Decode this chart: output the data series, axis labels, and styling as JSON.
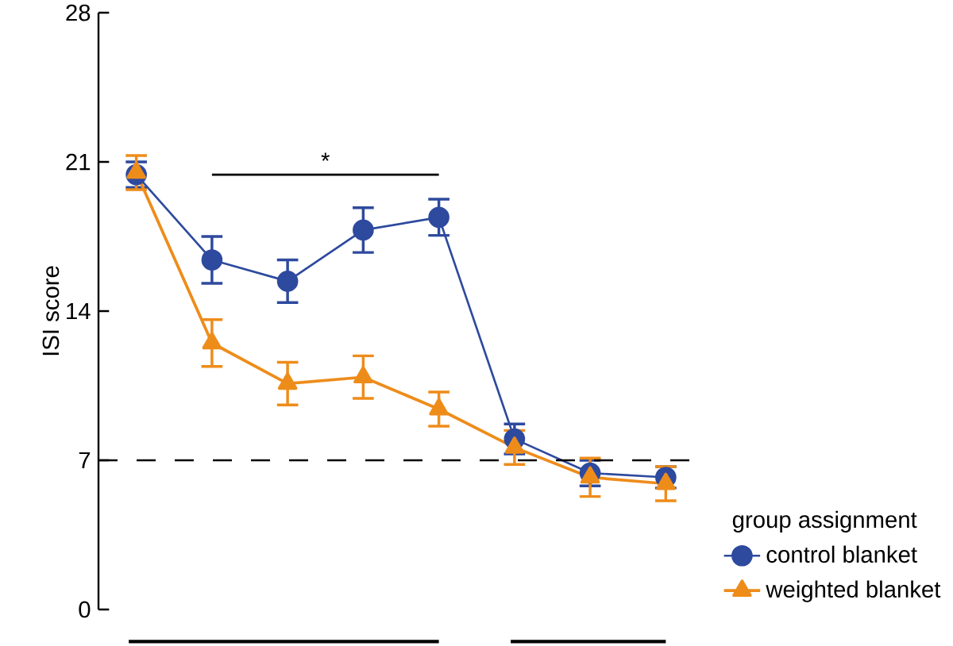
{
  "chart_data": {
    "type": "line",
    "ylabel": "ISI score",
    "legend_title": "group assignment",
    "categories": [
      null,
      null,
      null,
      null,
      null,
      null,
      null,
      null
    ],
    "series": [
      {
        "name": "control blanket",
        "color": "#2e4a9e",
        "marker": "circle",
        "values": [
          20.4,
          16.4,
          15.4,
          17.8,
          18.4,
          8.0,
          6.4,
          6.2
        ],
        "errors": [
          0.6,
          1.1,
          1.0,
          1.05,
          0.85,
          0.7,
          0.6,
          0.5
        ]
      },
      {
        "name": "weighted blanket",
        "color": "#ee8c1a",
        "marker": "triangle",
        "values": [
          20.5,
          12.5,
          10.6,
          10.9,
          9.4,
          7.6,
          6.2,
          5.9
        ],
        "errors": [
          0.8,
          1.1,
          1.0,
          1.0,
          0.8,
          0.8,
          0.9,
          0.8
        ]
      }
    ],
    "ylim": [
      0,
      28
    ],
    "yticks": [
      0,
      7,
      14,
      21,
      28
    ],
    "tick_labels": "y",
    "legend": "bottom right",
    "ref_lines": [
      {
        "axis": "y",
        "value": 7,
        "line_style": "dashed",
        "color": "#000000"
      }
    ],
    "annotations": [
      "*"
    ]
  }
}
